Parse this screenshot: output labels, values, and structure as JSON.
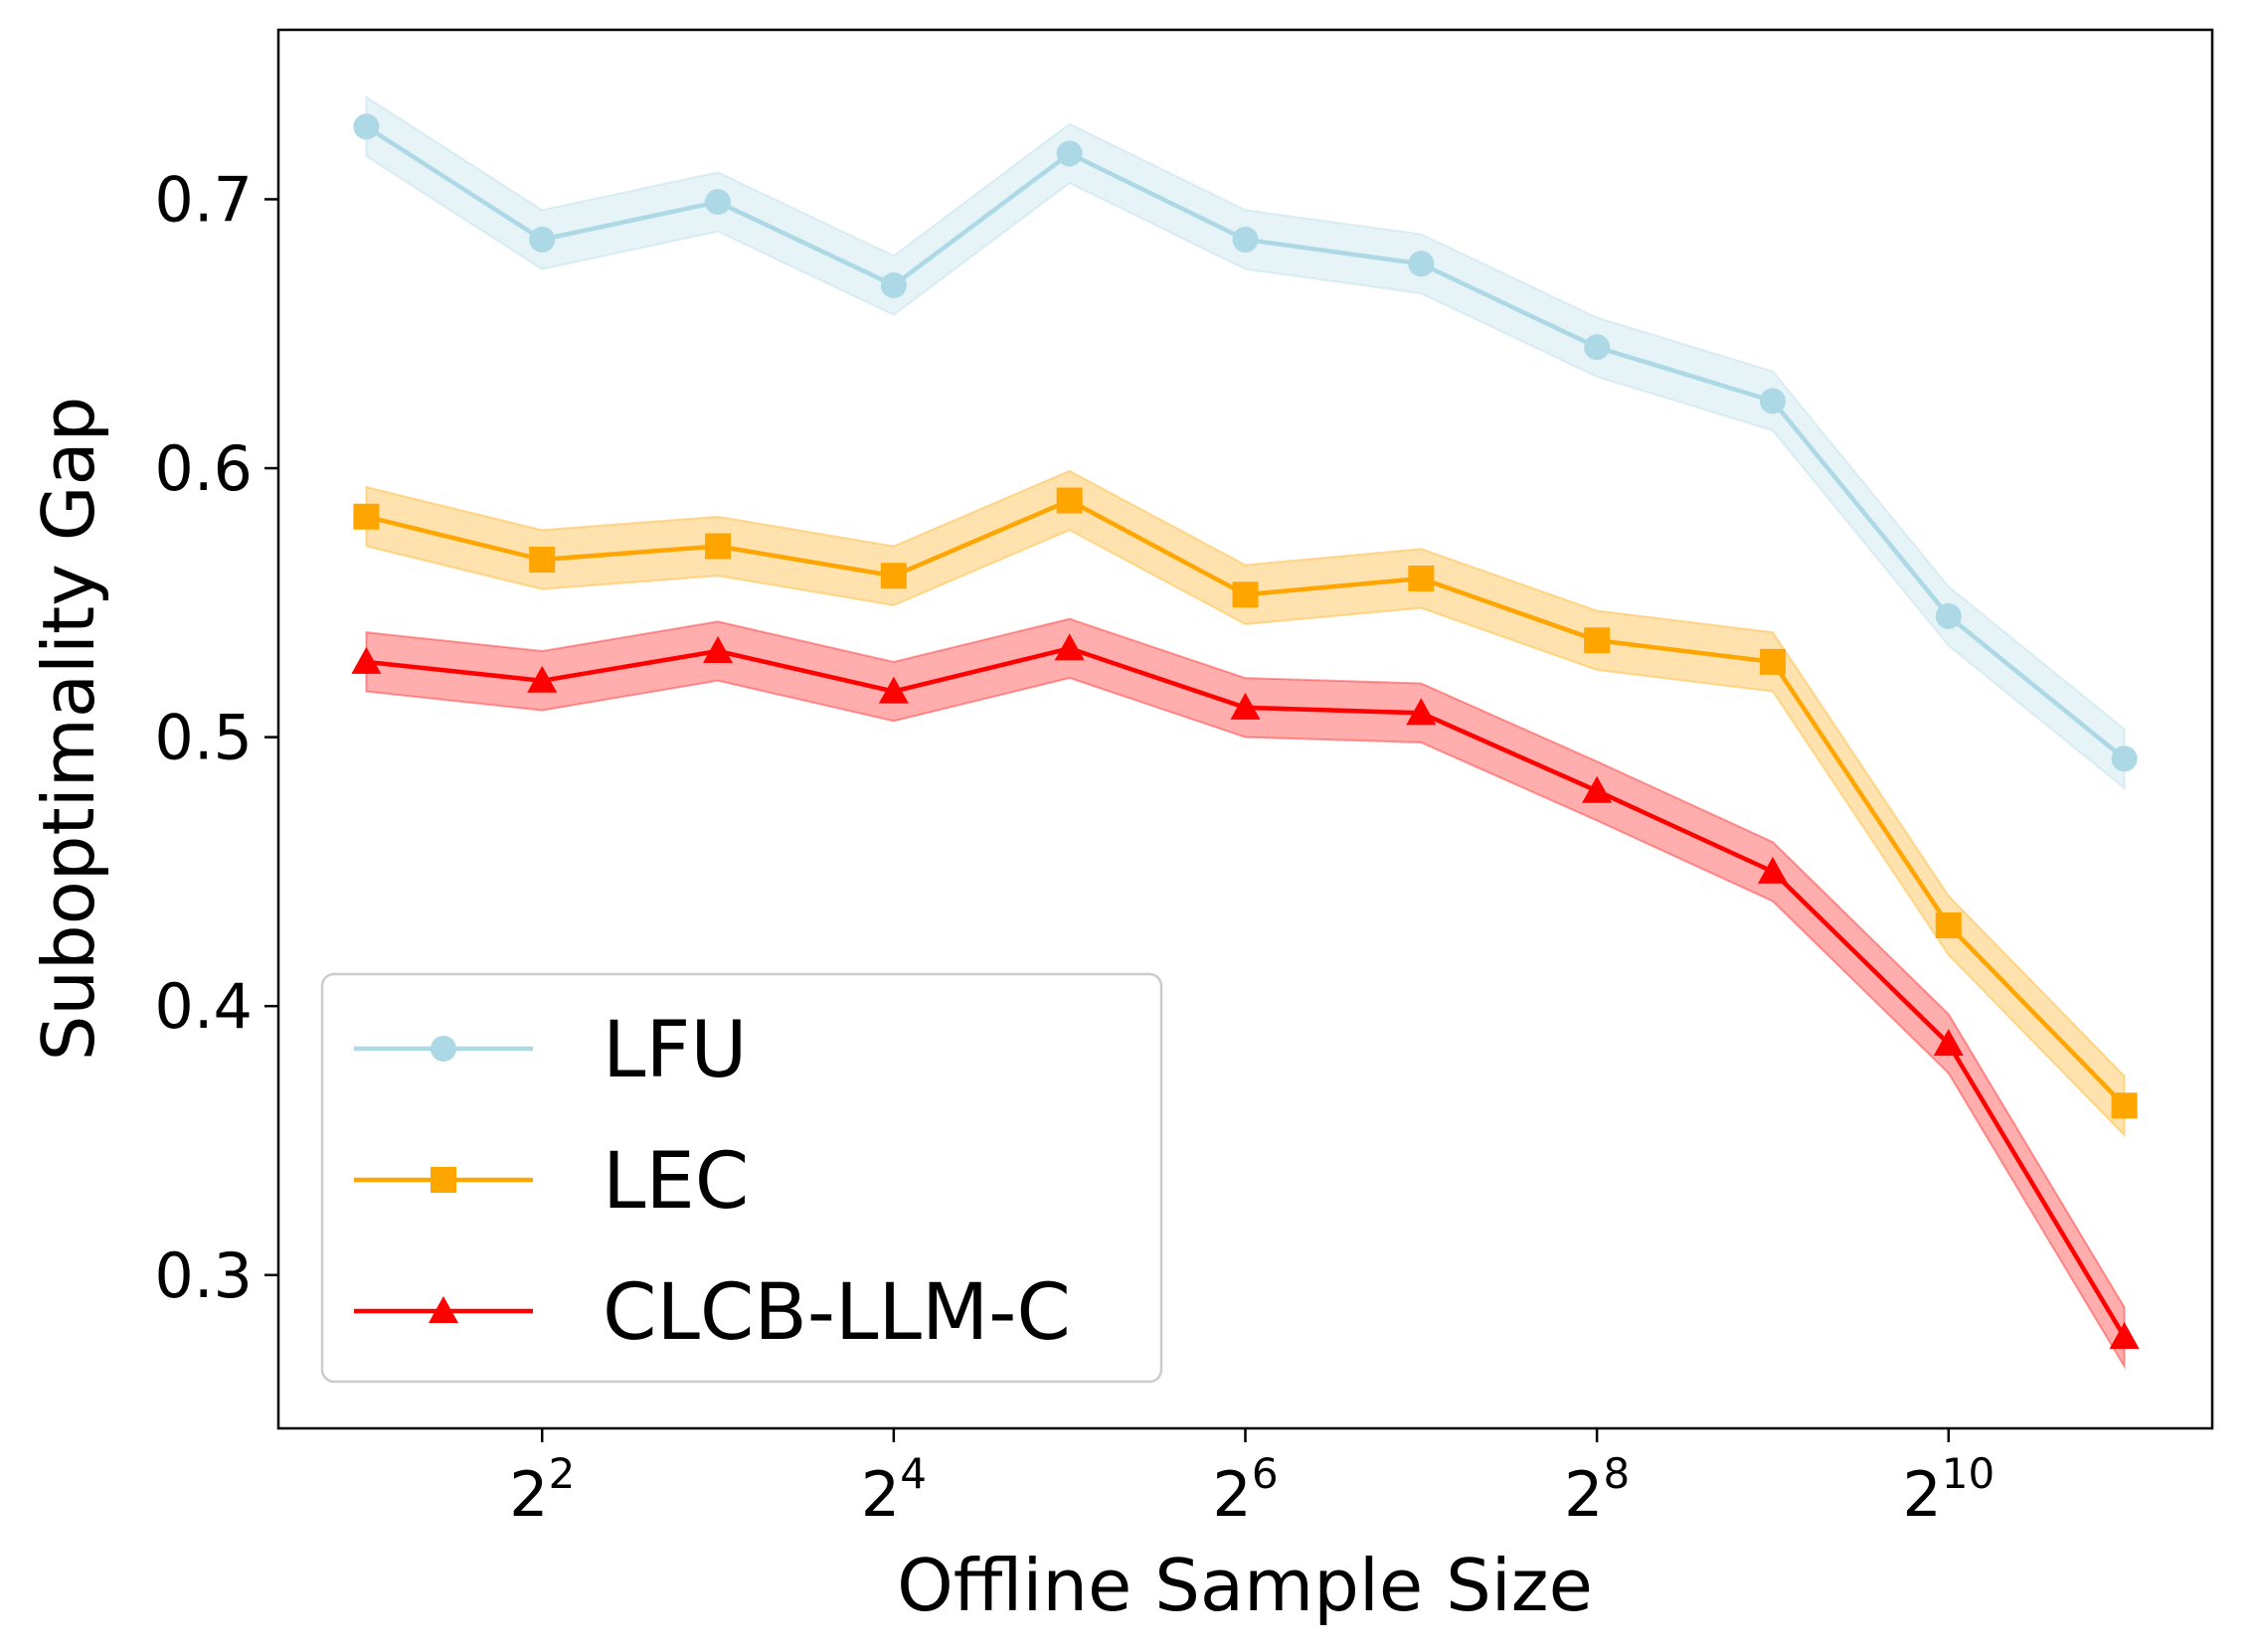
{
  "chart_data": {
    "type": "line",
    "title": "",
    "xlabel": "Offline Sample Size",
    "ylabel": "Suboptimality Gap",
    "x_scale": "log2",
    "x_exponents": [
      1,
      2,
      3,
      4,
      5,
      6,
      7,
      8,
      9,
      10,
      11
    ],
    "xlim_exponent": [
      0.5,
      11.5
    ],
    "x_ticks": [
      {
        "exponent": 2,
        "base": "2",
        "power": "2"
      },
      {
        "exponent": 4,
        "base": "2",
        "power": "4"
      },
      {
        "exponent": 6,
        "base": "2",
        "power": "6"
      },
      {
        "exponent": 8,
        "base": "2",
        "power": "8"
      },
      {
        "exponent": 10,
        "base": "2",
        "power": "10"
      }
    ],
    "ylim": [
      0.243,
      0.763
    ],
    "y_ticks": [
      {
        "value": 0.3,
        "label": "0.3"
      },
      {
        "value": 0.4,
        "label": "0.4"
      },
      {
        "value": 0.5,
        "label": "0.5"
      },
      {
        "value": 0.6,
        "label": "0.6"
      },
      {
        "value": 0.7,
        "label": "0.7"
      }
    ],
    "grid": false,
    "legend_position": "lower-left",
    "series": [
      {
        "name": "LFU",
        "color": "#add8e6",
        "marker": "circle",
        "values": [
          0.727,
          0.685,
          0.699,
          0.668,
          0.717,
          0.685,
          0.676,
          0.645,
          0.625,
          0.545,
          0.492
        ],
        "band": 0.011
      },
      {
        "name": "LEC",
        "color": "#ffa500",
        "marker": "square",
        "values": [
          0.582,
          0.566,
          0.571,
          0.56,
          0.588,
          0.553,
          0.559,
          0.536,
          0.528,
          0.43,
          0.363
        ],
        "band": 0.011
      },
      {
        "name": "CLCB-LLM-C",
        "color": "#ff0000",
        "marker": "triangle",
        "values": [
          0.528,
          0.521,
          0.532,
          0.517,
          0.533,
          0.511,
          0.509,
          0.48,
          0.45,
          0.386,
          0.277
        ],
        "band": 0.011
      }
    ]
  }
}
